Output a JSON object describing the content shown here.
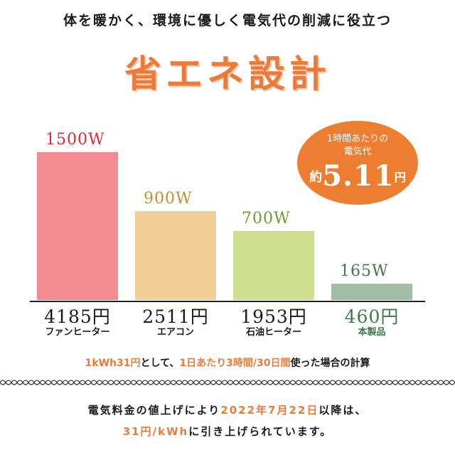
{
  "headline": "体を暖かく、環境に優しく電気代の削減に役立つ",
  "title": "省エネ設計",
  "badge": {
    "line1": "1時間あたりの",
    "line2": "電気代",
    "prefix": "約",
    "amount": "5.11",
    "suffix": "円"
  },
  "chart_data": {
    "type": "bar",
    "categories": [
      "ファンヒーター",
      "エアコン",
      "石油ヒーター",
      "本製品"
    ],
    "values": [
      1500,
      900,
      700,
      165
    ],
    "value_labels": [
      "1500W",
      "900W",
      "700W",
      "165W"
    ],
    "costs": [
      "4185円",
      "2511円",
      "1953円",
      "460円"
    ],
    "colors": [
      "#f28b8f",
      "#f0ce96",
      "#cfdf90",
      "#9fbea3"
    ],
    "label_colors": [
      "#e0282f",
      "#c58f2a",
      "#6f9a2f",
      "#3c7a4a"
    ],
    "highlight_index": 3,
    "ylim": [
      0,
      1500
    ],
    "title": "",
    "xlabel": "",
    "ylabel": "",
    "grid": false,
    "legend": "none"
  },
  "basis": {
    "a": "1kWh31円",
    "b": "として、",
    "c": "1日あたり3時間/30日間",
    "d": "使った場合の計算"
  },
  "notice": {
    "l1a": "電気料金の値上げにより",
    "l1b": "2022年7月22日",
    "l1c": "以降は、",
    "l2a": "31円/kWh",
    "l2b": "に引き上げられています。"
  },
  "colors": {
    "accent": "#ee7a3a",
    "badge": "#ed7d31",
    "text": "#1a1a1a",
    "highlight_text": "#3c7a4a"
  }
}
